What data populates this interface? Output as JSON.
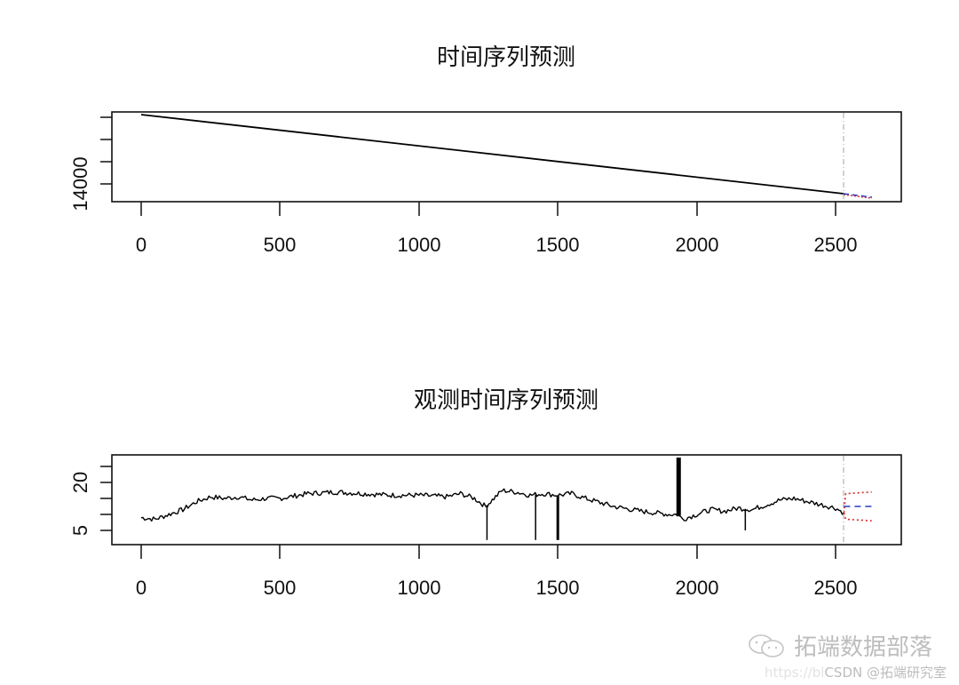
{
  "chart_data": [
    {
      "type": "line",
      "title": "时间序列预测",
      "xlabel": "",
      "ylabel": "",
      "x_ticks": [
        0,
        500,
        1000,
        1500,
        2000,
        2500
      ],
      "x_range": [
        0,
        2630
      ],
      "y_tick_labels_shown": [
        "14000"
      ],
      "y_ticks_count": 4,
      "grid": false,
      "series": [
        {
          "name": "observed",
          "color": "#000000",
          "style": "solid",
          "x": [
            0,
            2530
          ],
          "y": [
            14520,
            14030
          ]
        },
        {
          "name": "forecast_mean",
          "color": "#2b3fbf",
          "style": "dashed",
          "x": [
            2530,
            2630
          ],
          "y": [
            14030,
            14012
          ]
        },
        {
          "name": "forecast_interval",
          "color": "#d62828",
          "style": "dotted",
          "x": [
            2530,
            2630
          ],
          "y": [
            14030,
            14010
          ]
        }
      ],
      "forecast_start_marker": {
        "x": 2530,
        "color": "#b8b8b8",
        "style": "dashdot"
      }
    },
    {
      "type": "line",
      "title": "观测时间序列预测",
      "xlabel": "",
      "ylabel": "",
      "x_ticks": [
        0,
        500,
        1000,
        1500,
        2000,
        2500
      ],
      "x_range": [
        0,
        2630
      ],
      "y_ticks": [
        5,
        10,
        15,
        20,
        25
      ],
      "y_tick_labels_shown": [
        "5",
        "20"
      ],
      "ylim": [
        2,
        28
      ],
      "grid": false,
      "series": [
        {
          "name": "observed",
          "color": "#000000",
          "style": "solid",
          "x": [
            0,
            50,
            100,
            150,
            200,
            250,
            300,
            350,
            400,
            450,
            500,
            600,
            700,
            800,
            900,
            1000,
            1100,
            1150,
            1200,
            1240,
            1300,
            1350,
            1400,
            1450,
            1500,
            1550,
            1600,
            1700,
            1800,
            1900,
            1930,
            1950,
            2000,
            2050,
            2100,
            2150,
            2200,
            2250,
            2300,
            2350,
            2400,
            2450,
            2500,
            2530
          ],
          "y": [
            9,
            8.5,
            10,
            11.5,
            14,
            15.5,
            15,
            15.5,
            14.5,
            15,
            15,
            16.5,
            17,
            16.5,
            16,
            16,
            15.5,
            16.5,
            15,
            12.5,
            17.5,
            17,
            16,
            16.5,
            16,
            16.5,
            15,
            12.5,
            11,
            10,
            10,
            8.5,
            10,
            11.5,
            11,
            12,
            11.5,
            13,
            14.5,
            15,
            14,
            13,
            12,
            10.5
          ]
        },
        {
          "name": "forecast_mean",
          "color": "#2b3fbf",
          "style": "dashed",
          "x": [
            2530,
            2630
          ],
          "y": [
            12.5,
            12.5
          ]
        },
        {
          "name": "forecast_upper",
          "color": "#d62828",
          "style": "dotted",
          "x": [
            2530,
            2630
          ],
          "y": [
            16.5,
            17
          ]
        },
        {
          "name": "forecast_lower",
          "color": "#d62828",
          "style": "dotted",
          "x": [
            2530,
            2630
          ],
          "y": [
            8.5,
            8
          ]
        }
      ],
      "annotations": [
        {
          "type": "spike_down",
          "x": 1245,
          "to_y": 2
        },
        {
          "type": "spike_down",
          "x": 1420,
          "to_y": 2
        },
        {
          "type": "spike_down",
          "x": 1500,
          "to_y": 2
        },
        {
          "type": "spike_up",
          "x": 1935,
          "to_y": 28
        },
        {
          "type": "spike_down",
          "x": 2175,
          "to_y": 5
        }
      ],
      "forecast_start_marker": {
        "x": 2530,
        "color": "#b8b8b8",
        "style": "dashdot"
      }
    }
  ],
  "charts": {
    "top": {
      "title": "时间序列预测",
      "y_label_14000": "14000",
      "x_labels": [
        "0",
        "500",
        "1000",
        "1500",
        "2000",
        "2500"
      ]
    },
    "bottom": {
      "title": "观测时间序列预测",
      "y_label_20": "20",
      "y_label_5": "5",
      "x_labels": [
        "0",
        "500",
        "1000",
        "1500",
        "2000",
        "2500"
      ]
    }
  },
  "watermark": {
    "main": "拓端数据部落",
    "sub_faint": "https://bl",
    "sub": "CSDN @拓端研究室"
  },
  "colors": {
    "line": "#000000",
    "forecast_mean": "#2b3fbf",
    "forecast_interval": "#d62828",
    "marker": "#b8b8b8"
  }
}
